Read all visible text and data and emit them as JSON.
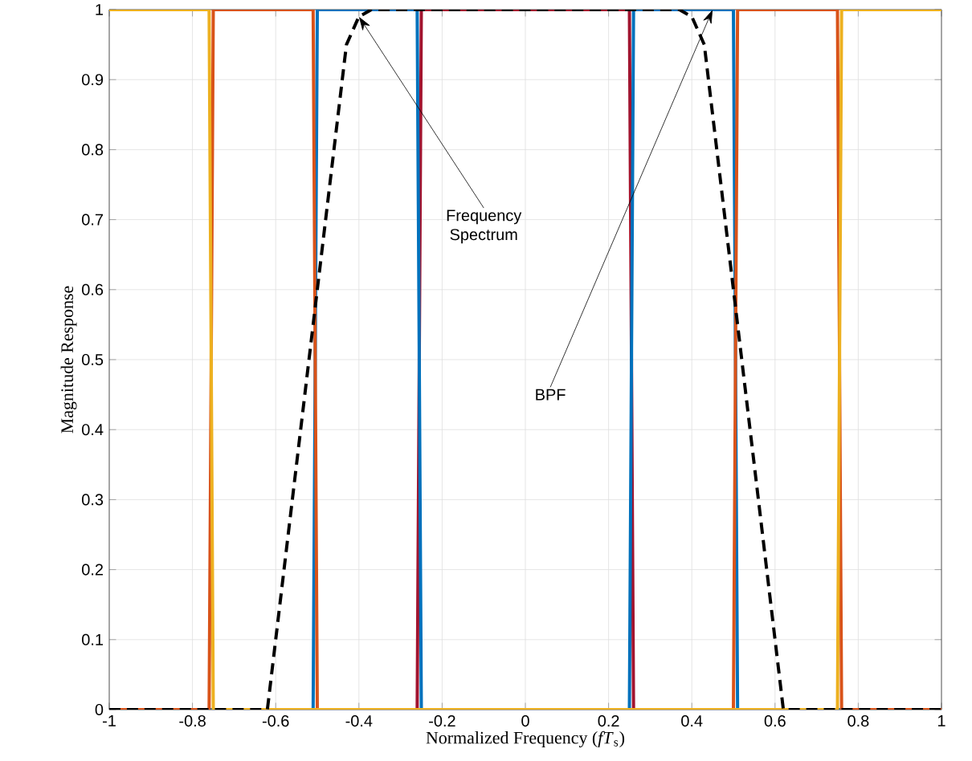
{
  "chart_data": {
    "type": "line",
    "xlabel": "Normalized Frequency (*fT*$_{s}$)",
    "ylabel": "Magnitude Response",
    "xlim": [
      -1,
      1
    ],
    "ylim": [
      0,
      1
    ],
    "xticks": [
      -1,
      -0.8,
      -0.6,
      -0.4,
      -0.2,
      0,
      0.2,
      0.4,
      0.6,
      0.8,
      1
    ],
    "yticks": [
      0,
      0.1,
      0.2,
      0.3,
      0.4,
      0.5,
      0.6,
      0.7,
      0.8,
      0.9,
      1
    ],
    "grid": true,
    "series": [
      {
        "color": "#a2142f",
        "line_style": "solid",
        "x": [
          -1,
          -0.26,
          -0.25,
          0.25,
          0.26,
          1
        ],
        "values": [
          0,
          0,
          1,
          1,
          0,
          0
        ]
      },
      {
        "color": "#0072bd",
        "line_style": "solid",
        "x": [
          -1,
          -0.51,
          -0.5,
          -0.26,
          -0.25,
          0.25,
          0.26,
          0.5,
          0.51,
          1
        ],
        "values": [
          0,
          0,
          1,
          1,
          0,
          0,
          1,
          1,
          0,
          0
        ]
      },
      {
        "color": "#d95319",
        "line_style": "solid",
        "x": [
          -1,
          -0.76,
          -0.75,
          -0.51,
          -0.5,
          0.5,
          0.51,
          0.75,
          0.76,
          1
        ],
        "values": [
          0,
          0,
          1,
          1,
          0,
          0,
          1,
          1,
          0,
          0
        ]
      },
      {
        "color": "#edb120",
        "line_style": "solid",
        "x": [
          -1,
          -0.76,
          -0.75,
          0.75,
          0.76,
          1
        ],
        "values": [
          1,
          1,
          0,
          0,
          1,
          1
        ]
      },
      {
        "color": "#000000",
        "line_style": "dashed",
        "x": [
          -1,
          -0.62,
          -0.52,
          -0.43,
          -0.4,
          -0.37,
          0.37,
          0.4,
          0.43,
          0.52,
          0.62,
          1
        ],
        "values": [
          0,
          0,
          0.5,
          0.95,
          0.99,
          1,
          1,
          0.99,
          0.95,
          0.5,
          0,
          0
        ]
      }
    ],
    "annotations": [
      {
        "text": "Frequency Spectrum",
        "x": -0.4,
        "y": 0.99
      },
      {
        "text": "BPF",
        "x": 0.45,
        "y": 1
      }
    ]
  }
}
